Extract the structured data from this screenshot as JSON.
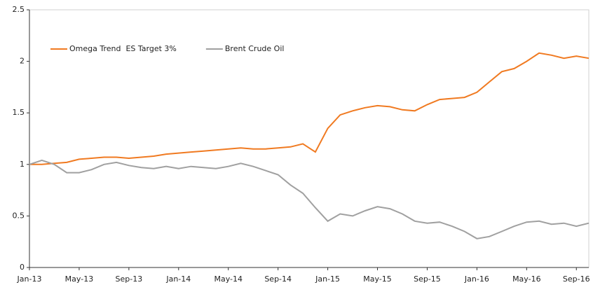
{
  "chart_data": {
    "type": "line",
    "categories": [
      "Jan-13",
      null,
      null,
      null,
      "May-13",
      null,
      null,
      null,
      "Sep-13",
      null,
      null,
      null,
      "Jan-14",
      null,
      null,
      null,
      "May-14",
      null,
      null,
      null,
      "Sep-14",
      null,
      null,
      null,
      "Jan-15",
      null,
      null,
      null,
      "May-15",
      null,
      null,
      null,
      "Sep-15",
      null,
      null,
      null,
      "Jan-16",
      null,
      null,
      null,
      "May-16",
      null,
      null,
      null,
      "Sep-16",
      null
    ],
    "series": [
      {
        "name": "Omega Trend  ES Target 3%",
        "color": "#f07a21",
        "values": [
          1.0,
          1.0,
          1.01,
          1.02,
          1.05,
          1.06,
          1.07,
          1.07,
          1.06,
          1.07,
          1.08,
          1.1,
          1.11,
          1.12,
          1.13,
          1.14,
          1.15,
          1.16,
          1.15,
          1.15,
          1.16,
          1.17,
          1.2,
          1.12,
          1.35,
          1.48,
          1.52,
          1.55,
          1.57,
          1.56,
          1.53,
          1.52,
          1.58,
          1.63,
          1.64,
          1.65,
          1.7,
          1.8,
          1.9,
          1.93,
          2.0,
          2.08,
          2.06,
          2.03,
          2.05,
          2.03
        ]
      },
      {
        "name": "Brent Crude Oil",
        "color": "#a0a0a0",
        "values": [
          1.0,
          1.04,
          1.0,
          0.92,
          0.92,
          0.95,
          1.0,
          1.02,
          0.99,
          0.97,
          0.96,
          0.98,
          0.96,
          0.98,
          0.97,
          0.96,
          0.98,
          1.01,
          0.98,
          0.94,
          0.9,
          0.8,
          0.72,
          0.58,
          0.45,
          0.52,
          0.5,
          0.55,
          0.59,
          0.57,
          0.52,
          0.45,
          0.43,
          0.44,
          0.4,
          0.35,
          0.28,
          0.3,
          0.35,
          0.4,
          0.44,
          0.45,
          0.42,
          0.43,
          0.4,
          0.43
        ]
      }
    ],
    "ylim": [
      0,
      2.5
    ],
    "yticks": [
      0,
      0.5,
      1,
      1.5,
      2,
      2.5
    ],
    "grid": false,
    "legend": "top-left"
  }
}
